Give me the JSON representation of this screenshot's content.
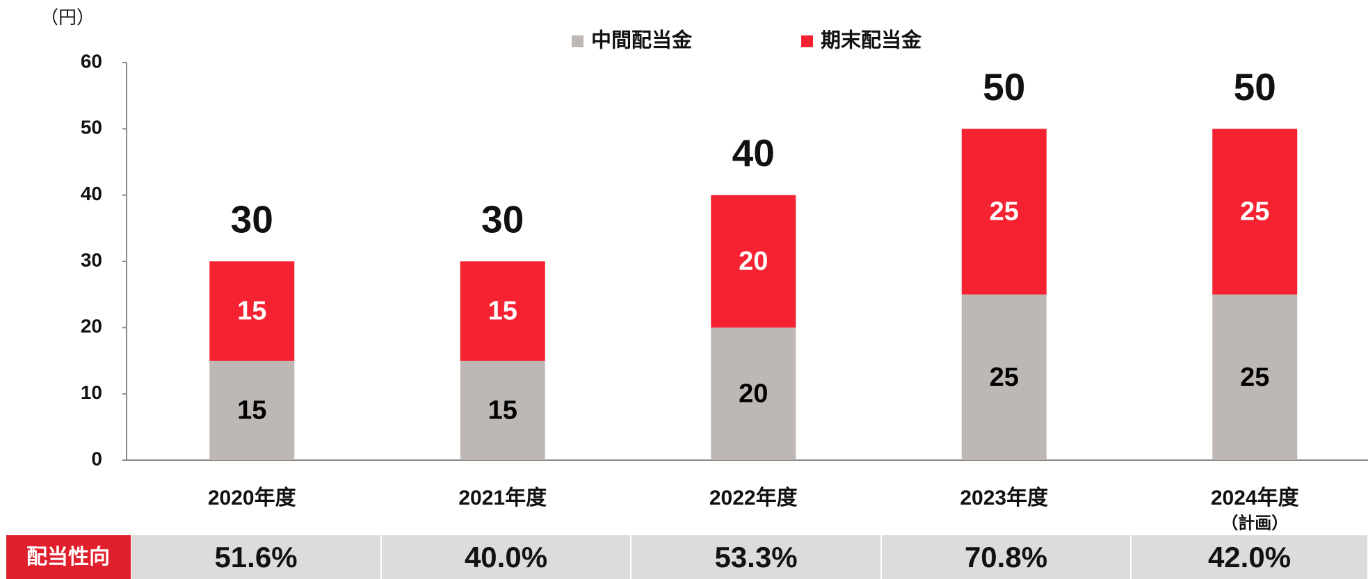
{
  "chart_data": {
    "type": "stacked_bar",
    "y_label": "（円）",
    "categories": [
      "2020年度",
      "2021年度",
      "2022年度",
      "2023年度",
      "2024年度"
    ],
    "plan_note": "（計画）",
    "series": [
      {
        "name": "中間配当金",
        "color": "#bdb8b4",
        "label_color": "#000000",
        "values": [
          15,
          15,
          20,
          25,
          25
        ]
      },
      {
        "name": "期末配当金",
        "color": "#f52231",
        "label_color": "#ffffff",
        "values": [
          15,
          15,
          20,
          25,
          25
        ]
      }
    ],
    "totals": [
      30,
      30,
      40,
      50,
      50
    ],
    "ylim": [
      0,
      60
    ],
    "yticks": [
      0,
      10,
      20,
      30,
      40,
      50,
      60
    ],
    "grid": false,
    "payout_ratio": {
      "label": "配当性向",
      "values": [
        51.6,
        40.0,
        53.3,
        70.8,
        42.0
      ],
      "value_labels": [
        "51.6%",
        "40.0%",
        "53.3%",
        "70.8%",
        "42.0%"
      ]
    }
  }
}
